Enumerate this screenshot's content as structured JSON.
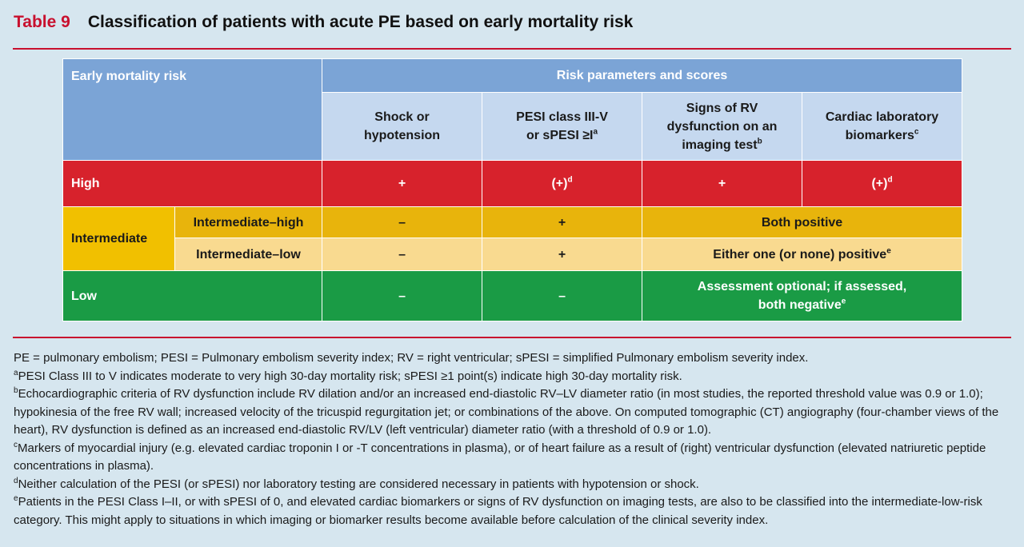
{
  "title": {
    "number": "Table 9",
    "text": "Classification of patients with acute PE based on early mortality risk"
  },
  "table": {
    "col_risk": "Early mortality risk",
    "col_params": "Risk parameters and scores",
    "sub_headers": [
      {
        "text": "Shock or hypotension",
        "sup": ""
      },
      {
        "text": "PESI class III-V or sPESI ≥I",
        "sup": "a"
      },
      {
        "text": "Signs of RV dysfunction on an imaging test",
        "sup": "b"
      },
      {
        "text": "Cardiac laboratory biomarkers",
        "sup": "c"
      }
    ],
    "high": {
      "label": "High",
      "c1": "+",
      "c2": "(+)",
      "c2_sup": "d",
      "c3": "+",
      "c4": "(+)",
      "c4_sup": "d"
    },
    "intermediate": {
      "label": "Intermediate",
      "ih": {
        "label": "Intermediate–high",
        "c1": "–",
        "c2": "+",
        "c34": "Both positive"
      },
      "il": {
        "label": "Intermediate–low",
        "c1": "–",
        "c2": "+",
        "c34": "Either one (or none) positive",
        "c34_sup": "e"
      }
    },
    "low": {
      "label": "Low",
      "c1": "–",
      "c2": "–",
      "c34": "Assessment optional; if assessed, both negative",
      "c34_sup": "e"
    }
  },
  "footnotes": {
    "abbrev": "PE = pulmonary embolism; PESI = Pulmonary embolism severity index; RV = right ventricular; sPESI = simplified Pulmonary embolism severity index.",
    "items": [
      {
        "mark": "a",
        "text": "PESI Class III to V indicates moderate to very high 30-day mortality risk; sPESI ≥1 point(s) indicate high 30-day mortality risk."
      },
      {
        "mark": "b",
        "text": "Echocardiographic criteria of RV dysfunction include RV dilation and/or an increased end-diastolic RV–LV diameter ratio (in most studies, the reported threshold value was 0.9 or 1.0); hypokinesia of the free RV wall; increased velocity of the tricuspid regurgitation jet; or combinations of the above. On computed tomographic (CT) angiography (four-chamber views of the heart), RV dysfunction is defined as an increased end-diastolic RV/LV (left ventricular) diameter ratio (with a threshold of 0.9 or 1.0)."
      },
      {
        "mark": "c",
        "text": "Markers of myocardial injury (e.g. elevated cardiac troponin I or -T concentrations in plasma), or of heart failure as a result of (right) ventricular dysfunction (elevated natriuretic peptide concentrations in plasma)."
      },
      {
        "mark": "d",
        "text": "Neither calculation of the PESI (or sPESI) nor laboratory testing are considered necessary in patients with hypotension or shock."
      },
      {
        "mark": "e",
        "text": "Patients in the PESI Class I–II, or with sPESI of 0, and elevated cardiac biomarkers or signs of RV dysfunction on imaging tests, are also to be classified into the intermediate-low-risk category. This might apply to situations in which imaging or biomarker results become available before calculation of the clinical severity index."
      }
    ]
  },
  "colors": {
    "title_accent": "#c8102e",
    "header_dark": "#7ba4d6",
    "header_light": "#c5d8ef",
    "high": "#d7222c",
    "intermediate_high": "#e8b40c",
    "intermediate_low": "#f9da90",
    "low": "#1a9b45",
    "background": "#d6e6ef"
  }
}
